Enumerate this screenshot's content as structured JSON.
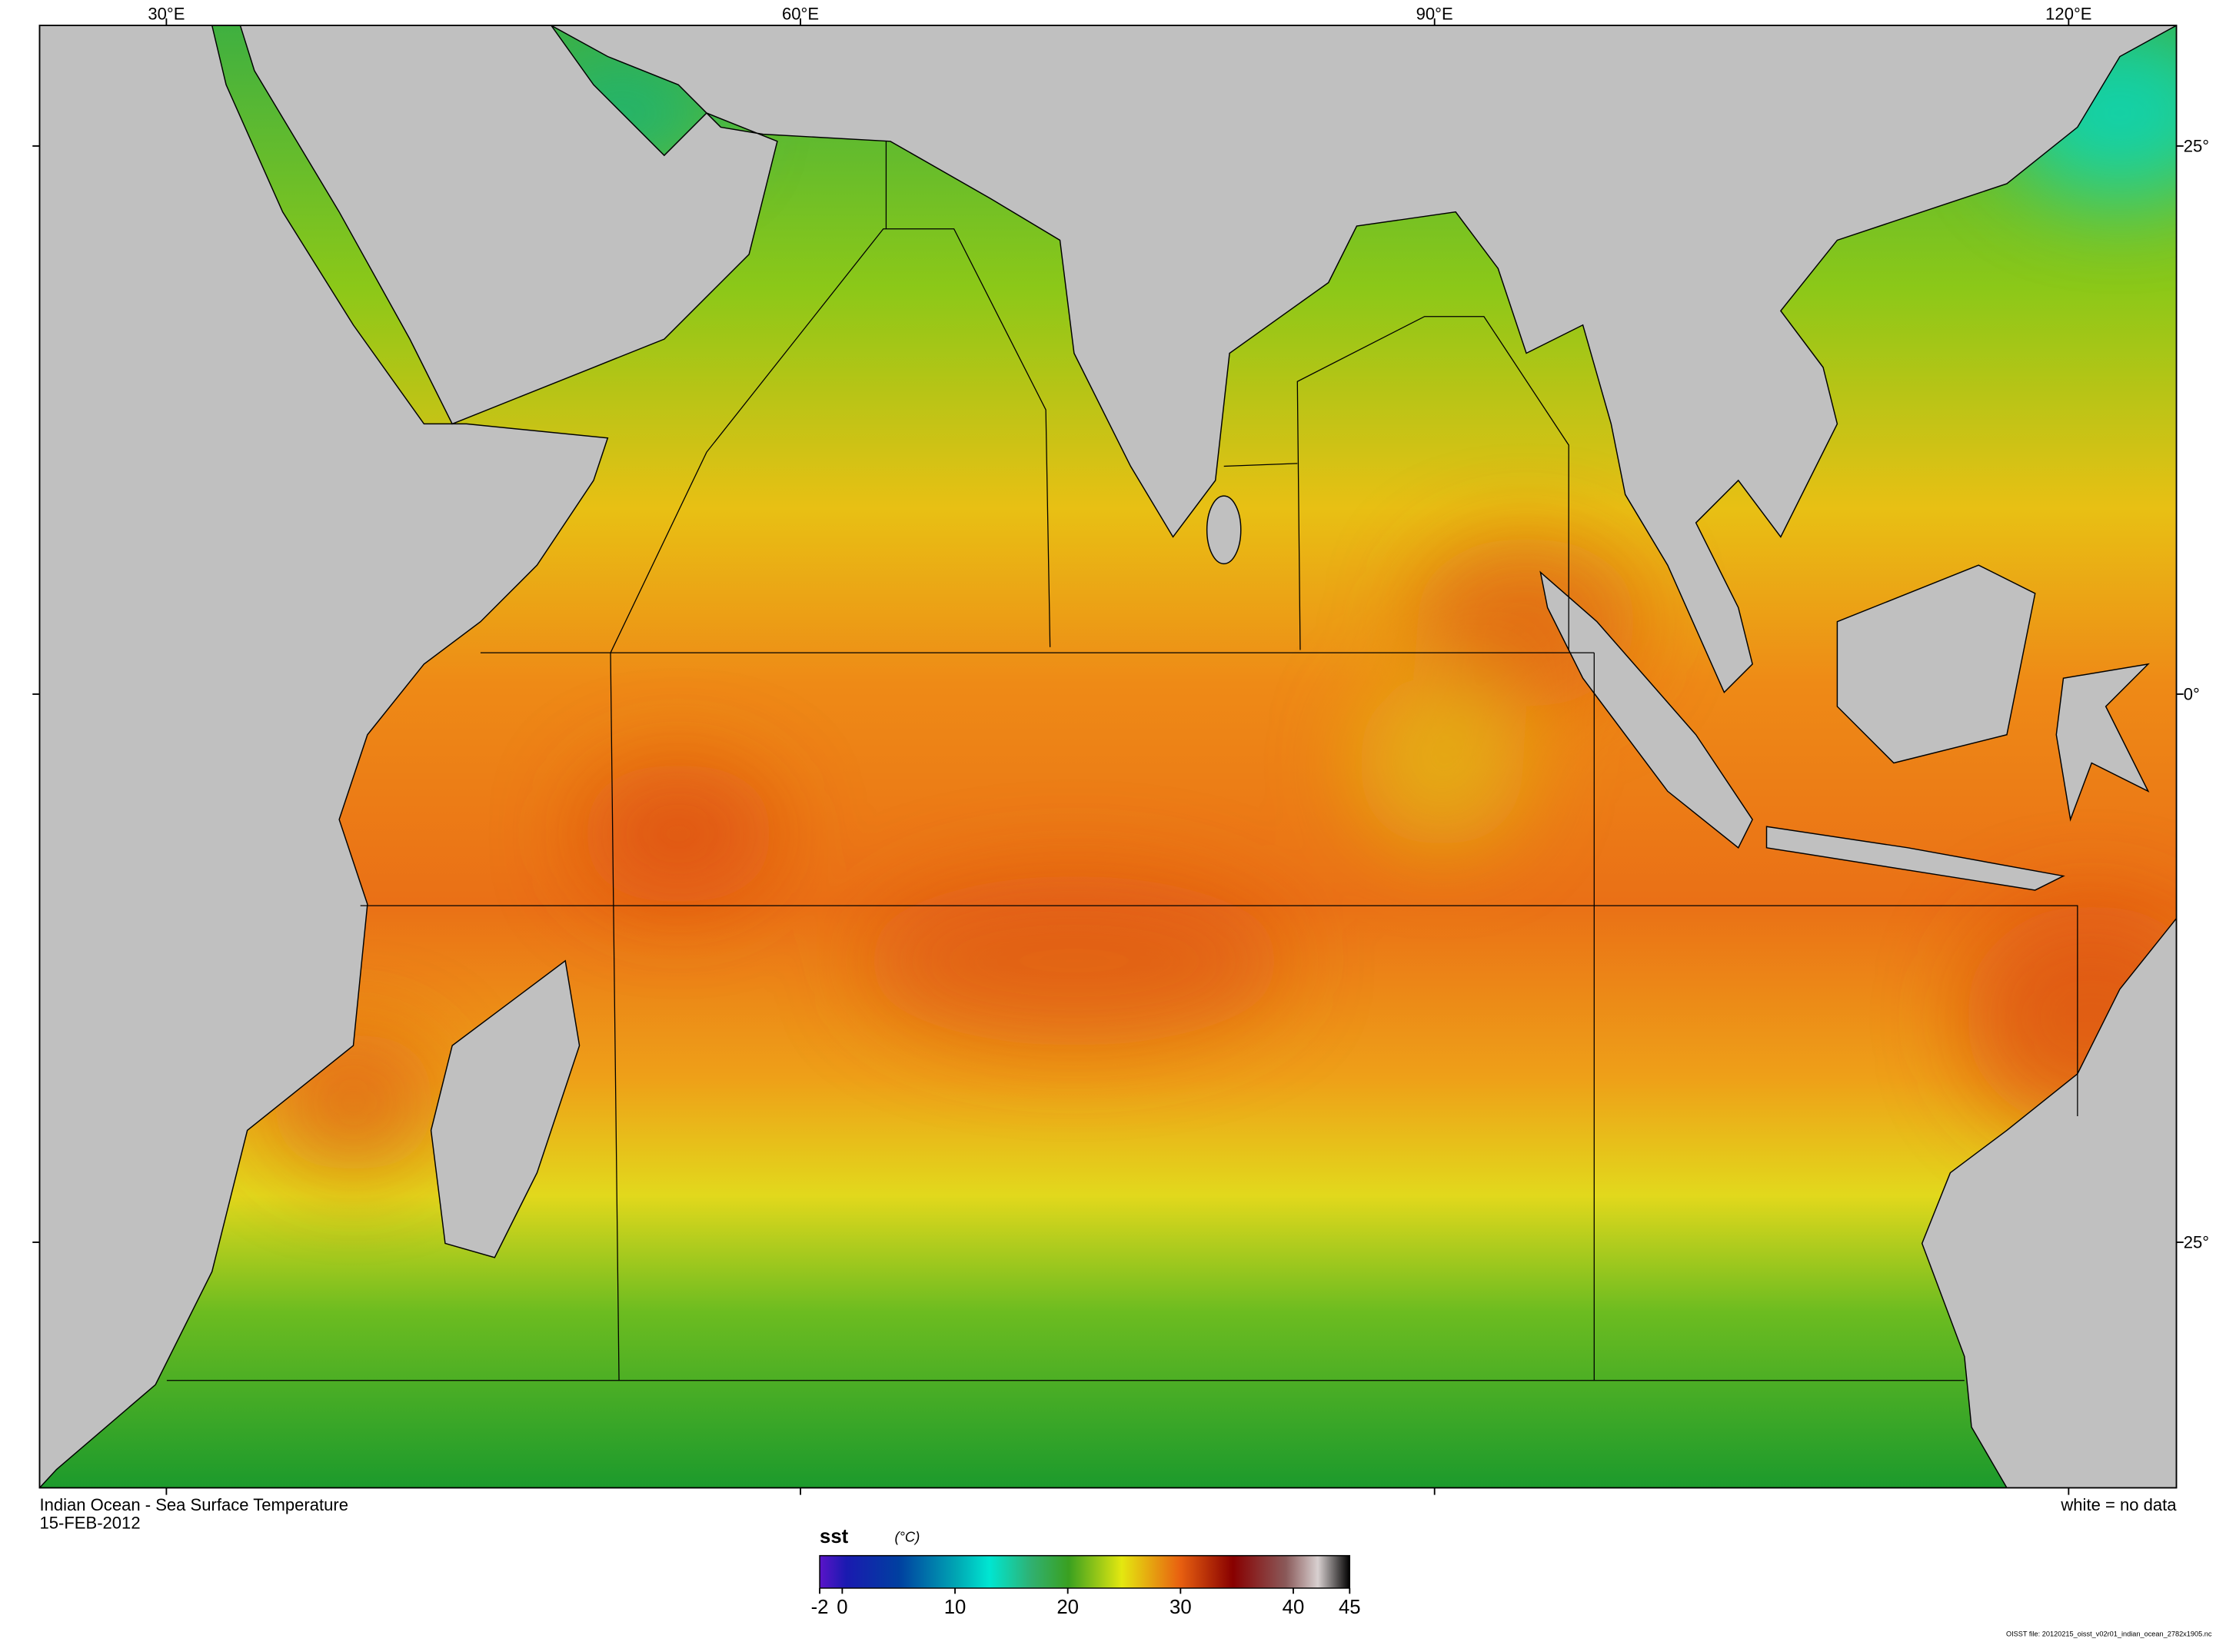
{
  "title": "Indian Ocean - Sea Surface Temperature",
  "date": "15-FEB-2012",
  "note": "white = no data",
  "file_note": "OISST file: 20120215_oisst_v02r01_indian_ocean_2782x1905.nc",
  "map": {
    "lon_range": [
      24,
      125.1
    ],
    "lat_range": [
      -36.2,
      30.5
    ],
    "lon_ticks": [
      {
        "value": 30,
        "label": "30°E"
      },
      {
        "value": 60,
        "label": "60°E"
      },
      {
        "value": 90,
        "label": "90°E"
      },
      {
        "value": 120,
        "label": "120°E"
      }
    ],
    "lat_ticks": [
      {
        "value": 25,
        "label": "25°"
      },
      {
        "value": 0,
        "label": "0°"
      },
      {
        "value": -25,
        "label": "25°"
      }
    ]
  },
  "colorbar": {
    "variable": "sst",
    "unit": "(°C)",
    "range": [
      -2,
      45
    ],
    "ticks": [
      -2,
      0,
      10,
      20,
      30,
      40,
      45
    ]
  }
}
